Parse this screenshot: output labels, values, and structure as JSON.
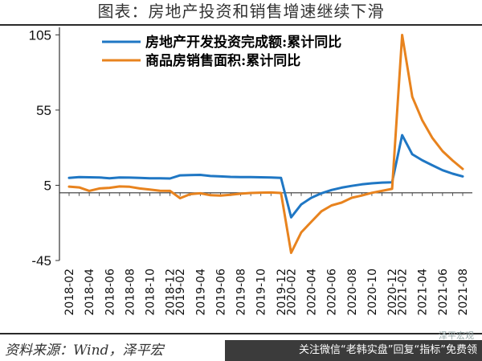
{
  "header": {
    "title": "图表：房地产投资和销售增速继续下滑"
  },
  "footer": {
    "source": "资料来源：Wind，泽平宏",
    "watermark": "关注微信“老韩实盘”回复“指标”免费领",
    "watermark_faint": "泽平宏观"
  },
  "colors": {
    "series1": "#1F77C4",
    "series2": "#E8831E",
    "rule": "#2a2a2a"
  },
  "chart_data": {
    "type": "line",
    "title": "",
    "xlabel": "",
    "ylabel": "",
    "ylim": [
      -45,
      110
    ],
    "yticks": [
      105,
      55,
      5,
      -45
    ],
    "categories": [
      "2018-02",
      "2018-03",
      "2018-04",
      "2018-05",
      "2018-06",
      "2018-07",
      "2018-08",
      "2018-09",
      "2018-10",
      "2018-11",
      "2018-12",
      "2019-02",
      "2019-03",
      "2019-04",
      "2019-05",
      "2019-06",
      "2019-07",
      "2019-08",
      "2019-09",
      "2019-10",
      "2019-11",
      "2019-12",
      "2020-02",
      "2020-03",
      "2020-04",
      "2020-05",
      "2020-06",
      "2020-07",
      "2020-08",
      "2020-09",
      "2020-10",
      "2020-11",
      "2020-12",
      "2021-02",
      "2021-03",
      "2021-04",
      "2021-05",
      "2021-06",
      "2021-07",
      "2021-08"
    ],
    "xtick_labels": [
      "2018-02",
      "2018-04",
      "2018-06",
      "2018-08",
      "2018-10",
      "2018-12",
      "2019-02",
      "2019-04",
      "2019-06",
      "2019-08",
      "2019-10",
      "2019-12",
      "2020-02",
      "2020-04",
      "2020-06",
      "2020-08",
      "2020-10",
      "2020-12",
      "2021-02",
      "2021-04",
      "2021-06",
      "2021-08"
    ],
    "series": [
      {
        "name": "房地产开发投资完成额:累计同比",
        "values": [
          9.9,
          10.4,
          10.3,
          10.2,
          9.7,
          10.2,
          10.1,
          9.9,
          9.7,
          9.7,
          9.5,
          11.6,
          11.8,
          11.9,
          11.2,
          10.9,
          10.6,
          10.5,
          10.5,
          10.3,
          10.2,
          9.9,
          -16.3,
          -7.7,
          -3.3,
          -0.3,
          1.9,
          3.4,
          4.6,
          5.6,
          6.3,
          6.8,
          7.0,
          38.3,
          25.6,
          21.6,
          18.3,
          15.0,
          12.7,
          10.9
        ]
      },
      {
        "name": "商品房销售面积:累计同比",
        "values": [
          4.1,
          3.6,
          1.3,
          2.9,
          3.3,
          4.2,
          4.0,
          2.9,
          2.2,
          1.4,
          1.3,
          -3.6,
          -0.9,
          -0.3,
          -1.6,
          -1.8,
          -1.3,
          -0.6,
          -0.1,
          0.1,
          0.2,
          -0.1,
          -39.9,
          -26.3,
          -19.3,
          -12.3,
          -8.4,
          -6.5,
          -3.3,
          -1.8,
          0.0,
          1.3,
          2.6,
          104.9,
          63.8,
          48.1,
          36.4,
          27.7,
          21.5,
          15.9
        ]
      }
    ],
    "grid": false,
    "legend_position": "top"
  }
}
